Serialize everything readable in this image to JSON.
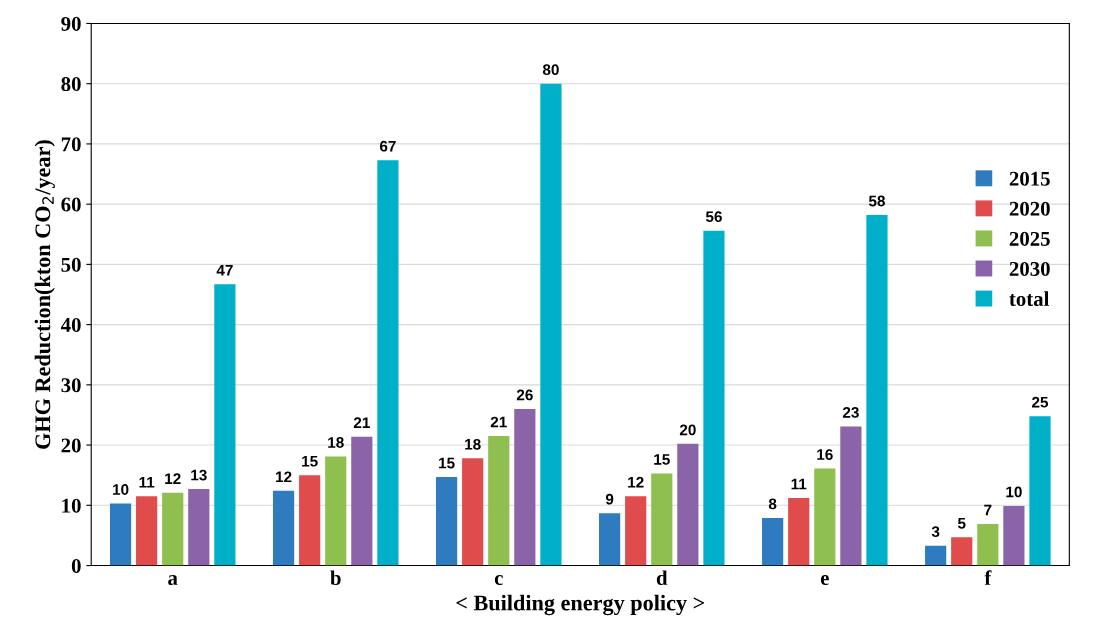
{
  "chart_data": {
    "type": "bar",
    "xlabel": "< Building energy policy >",
    "ylabel": "GHG Reduction(kton CO$_{2}$/year)",
    "categories": [
      "a",
      "b",
      "c",
      "d",
      "e",
      "f"
    ],
    "ylim": [
      0,
      90
    ],
    "yticks": [
      0,
      10,
      20,
      30,
      40,
      50,
      60,
      70,
      80,
      90
    ],
    "grid": "y",
    "legend": "right",
    "series": [
      {
        "name": "2015",
        "color": "#2e7bbf",
        "values": [
          10.3,
          12.4,
          14.7,
          8.7,
          7.9,
          3.3
        ],
        "value_labels": [
          "10",
          "12",
          "15",
          "9",
          "8",
          "3"
        ]
      },
      {
        "name": "2020",
        "color": "#e04b4b",
        "values": [
          11.5,
          15.0,
          17.8,
          11.5,
          11.2,
          4.7
        ],
        "value_labels": [
          "11",
          "15",
          "18",
          "12",
          "11",
          "5"
        ]
      },
      {
        "name": "2025",
        "color": "#8fbf4f",
        "values": [
          12.1,
          18.1,
          21.5,
          15.3,
          16.1,
          6.9
        ],
        "value_labels": [
          "12",
          "18",
          "21",
          "15",
          "16",
          "7"
        ]
      },
      {
        "name": "2030",
        "color": "#8a63a8",
        "values": [
          12.7,
          21.4,
          26.0,
          20.2,
          23.1,
          9.9
        ],
        "value_labels": [
          "13",
          "21",
          "26",
          "20",
          "23",
          "10"
        ]
      },
      {
        "name": "total",
        "color": "#00afc8",
        "values": [
          46.7,
          67.3,
          80.0,
          55.6,
          58.2,
          24.8
        ],
        "value_labels": [
          "47",
          "67",
          "80",
          "56",
          "58",
          "25"
        ]
      }
    ]
  }
}
